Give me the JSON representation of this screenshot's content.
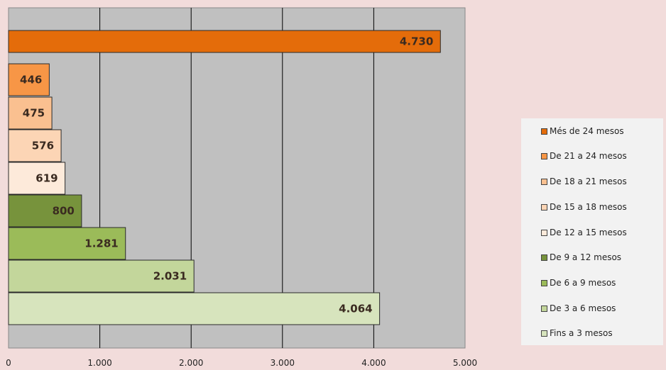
{
  "chart_data": {
    "type": "bar",
    "orientation": "horizontal",
    "categories": [
      "Més de 24 mesos",
      "De 21 a 24 mesos",
      "De 18 a 21 mesos",
      "De 15 a 18 mesos",
      "De 12 a 15 mesos",
      "De 9 a 12 mesos",
      "De 6 a 9 mesos",
      "De 3 a 6 mesos",
      "Fins a 3 mesos"
    ],
    "values": [
      4730,
      446,
      475,
      576,
      619,
      800,
      1281,
      2031,
      4064
    ],
    "value_labels": [
      "4.730",
      "446",
      "475",
      "576",
      "619",
      "800",
      "1.281",
      "2.031",
      "4.064"
    ],
    "colors": [
      "#e46c0a",
      "#f79646",
      "#fac090",
      "#fcd5b5",
      "#fdeada",
      "#77933c",
      "#9bbb59",
      "#c3d69b",
      "#d7e4bd"
    ],
    "xlim": [
      0,
      5000
    ],
    "x_ticks": [
      0,
      1000,
      2000,
      3000,
      4000,
      5000
    ],
    "x_tick_labels": [
      "0",
      "1.000",
      "2.000",
      "3.000",
      "4.000",
      "5.000"
    ],
    "grid": true,
    "plot_background": "#c0c0c0",
    "legend_position": "right",
    "title": "",
    "xlabel": "",
    "ylabel": ""
  }
}
